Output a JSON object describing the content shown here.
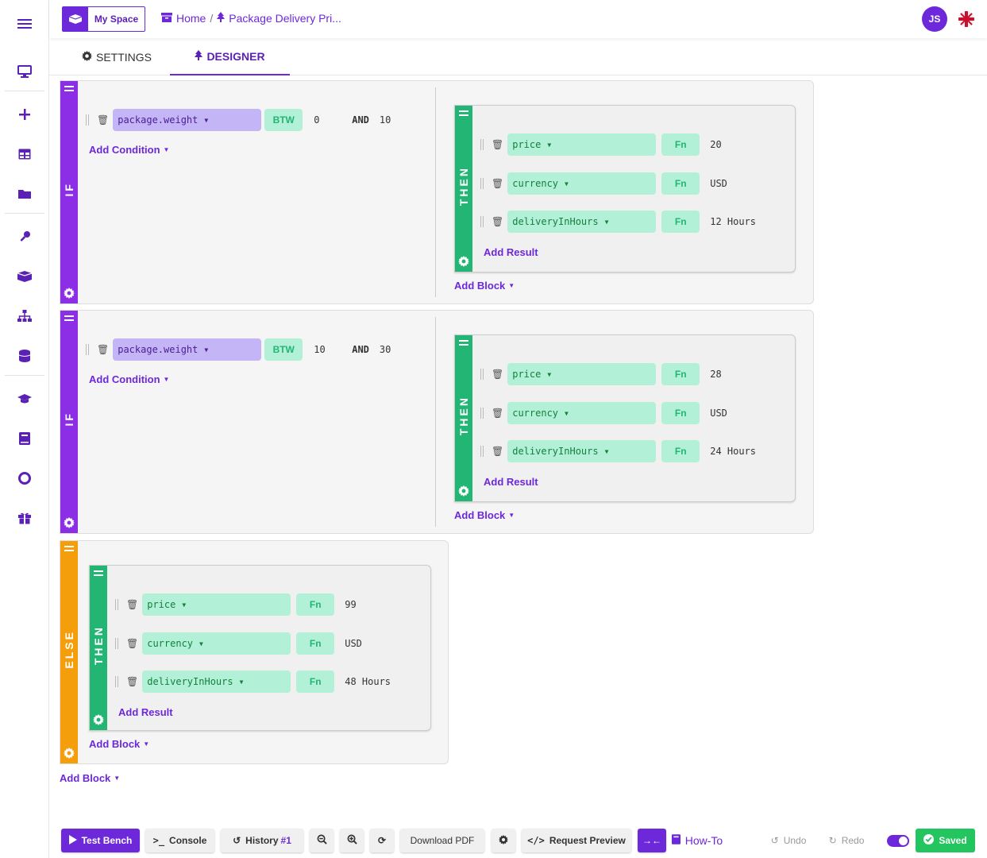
{
  "header": {
    "space_label": "My Space",
    "breadcrumb_home": "Home",
    "breadcrumb_current": "Package Delivery Pri...",
    "avatar_initials": "JS"
  },
  "tabs": [
    {
      "label": "SETTINGS",
      "icon": "gear-icon",
      "active": false
    },
    {
      "label": "DESIGNER",
      "icon": "tree-icon",
      "active": true
    }
  ],
  "sidebar": {
    "icons": [
      "menu-icon",
      "desktop-icon",
      "plus-icon",
      "table-icon",
      "folder-icon",
      "key-icon",
      "boxes-icon",
      "sitemap-icon",
      "database-icon",
      "graduation-cap-icon",
      "book-icon",
      "lifebuoy-icon",
      "gift-icon"
    ]
  },
  "rules": [
    {
      "type": "IF",
      "condition": {
        "field": "package.weight",
        "operator": "BTW",
        "from": "0",
        "and": "AND",
        "to": "10"
      },
      "add_condition": "Add Condition",
      "then_label": "THEN",
      "results": [
        {
          "field": "price",
          "operator": "Fn",
          "value": "20"
        },
        {
          "field": "currency",
          "operator": "Fn",
          "value": "USD"
        },
        {
          "field": "deliveryInHours",
          "operator": "Fn",
          "value": "12 Hours"
        }
      ],
      "add_result": "Add Result",
      "add_block": "Add Block"
    },
    {
      "type": "IF",
      "condition": {
        "field": "package.weight",
        "operator": "BTW",
        "from": "10",
        "and": "AND",
        "to": "30"
      },
      "add_condition": "Add Condition",
      "then_label": "THEN",
      "results": [
        {
          "field": "price",
          "operator": "Fn",
          "value": "28"
        },
        {
          "field": "currency",
          "operator": "Fn",
          "value": "USD"
        },
        {
          "field": "deliveryInHours",
          "operator": "Fn",
          "value": "24 Hours"
        }
      ],
      "add_result": "Add Result",
      "add_block": "Add Block"
    },
    {
      "type": "ELSE",
      "then_label": "THEN",
      "results": [
        {
          "field": "price",
          "operator": "Fn",
          "value": "99"
        },
        {
          "field": "currency",
          "operator": "Fn",
          "value": "USD"
        },
        {
          "field": "deliveryInHours",
          "operator": "Fn",
          "value": "48 Hours"
        }
      ],
      "add_result": "Add Result",
      "add_block": "Add Block"
    }
  ],
  "root_add_block": "Add Block",
  "footer": {
    "test_bench": "Test Bench",
    "console": "Console",
    "history": "History",
    "history_count": "#1",
    "download_pdf": "Download PDF",
    "request_preview": "Request Preview",
    "how_to": "How-To",
    "undo": "Undo",
    "redo": "Redo",
    "saved": "Saved"
  },
  "colors": {
    "accent": "#6d28d9",
    "if_bar": "#8b2ee6",
    "else_bar": "#f59e0b",
    "then_bar": "#22b573",
    "condition_field": "#c4b5f7",
    "result_field": "#b2f0d7",
    "saved": "#22c55e"
  }
}
